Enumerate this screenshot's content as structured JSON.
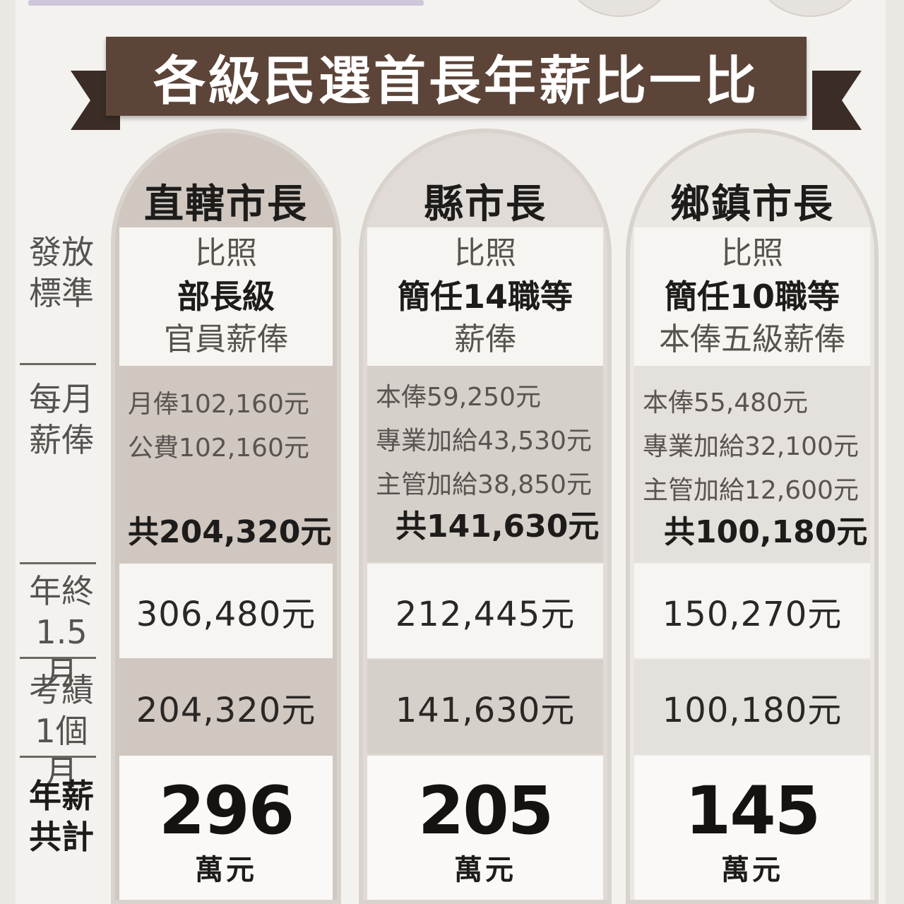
{
  "title": "各級民選首長年薪比一比",
  "row_labels": {
    "standard": "發放\n標準",
    "monthly": "每月\n薪俸",
    "year_end": "年終\n1.5月",
    "merit": "考績\n1個月",
    "annual_total": "年薪\n共計"
  },
  "columns": [
    {
      "name": "直轄市長",
      "standard": [
        "比照",
        "部長級",
        "官員薪俸"
      ],
      "monthly_items": [
        "月俸102,160元",
        "公費102,160元"
      ],
      "monthly_total": "共204,320元",
      "year_end": "306,480元",
      "merit": "204,320元",
      "annual_total": "296",
      "annual_unit": "萬元"
    },
    {
      "name": "縣市長",
      "standard": [
        "比照",
        "簡任14職等",
        "薪俸"
      ],
      "monthly_items": [
        "本俸59,250元",
        "專業加給43,530元",
        "主管加給38,850元"
      ],
      "monthly_total": "共141,630元",
      "year_end": "212,445元",
      "merit": "141,630元",
      "annual_total": "205",
      "annual_unit": "萬元"
    },
    {
      "name": "鄉鎮市長",
      "standard": [
        "比照",
        "簡任10職等",
        "本俸五級薪俸"
      ],
      "monthly_items": [
        "本俸55,480元",
        "專業加給32,100元",
        "主管加給12,600元"
      ],
      "monthly_total": "共100,180元",
      "year_end": "150,270元",
      "merit": "100,180元",
      "annual_total": "145",
      "annual_unit": "萬元"
    }
  ]
}
